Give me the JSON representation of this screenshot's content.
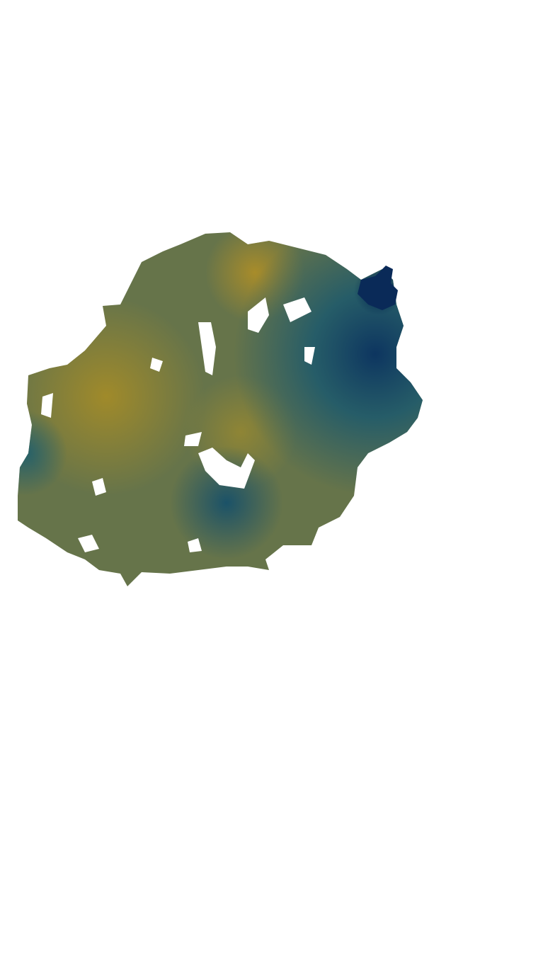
{
  "map": {
    "colormap": "cividis",
    "colors": {
      "low": "#00224e",
      "mid_low": "#1f5a6b",
      "mid": "#5d6f4e",
      "high": "#a08a2a",
      "background": "#ffffff"
    }
  }
}
